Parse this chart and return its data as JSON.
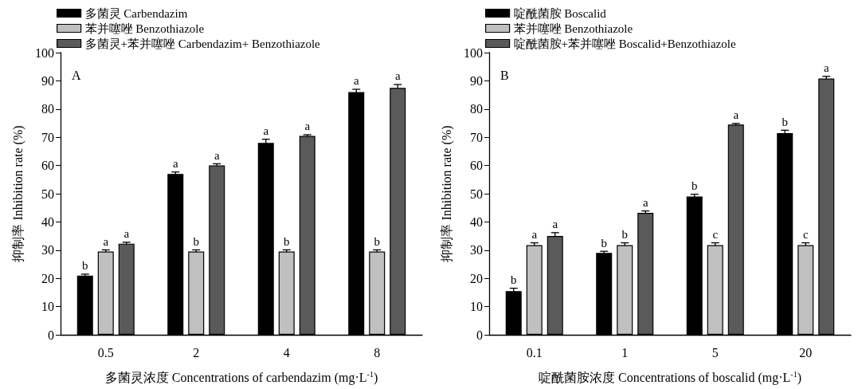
{
  "chart_data": [
    {
      "type": "bar",
      "annotations": [
        "A"
      ],
      "categories": [
        "0.5",
        "2",
        "4",
        "8"
      ],
      "xlabel": "多菌灵浓度 Concentrations of carbendazim (mg·L$^{-1}$)",
      "ylabel": "抑制率 Inhibition rate (%)",
      "ylim": [
        0,
        100
      ],
      "yticks": [
        0,
        10,
        20,
        30,
        40,
        50,
        60,
        70,
        80,
        90,
        100
      ],
      "legend": "top left",
      "grid": false,
      "series": [
        {
          "name": "多菌灵 Carbendazim",
          "color": "#000000",
          "values": [
            21,
            57,
            68,
            86
          ],
          "errors": [
            0.5,
            0.7,
            1.3,
            1
          ],
          "value_labels": [
            "b",
            "a",
            "a",
            "a"
          ]
        },
        {
          "name": "苯并噻唑 Benzothiazole",
          "color": "#c0c0c0",
          "values": [
            29.5,
            29.5,
            29.5,
            29.5
          ],
          "errors": [
            0.6,
            0.6,
            0.6,
            0.6
          ],
          "value_labels": [
            "a",
            "b",
            "b",
            "b"
          ]
        },
        {
          "name": "多菌灵+苯并噻唑 Carbendazim+ Benzothiazole",
          "color": "#5a5a5a",
          "values": [
            32.3,
            60,
            70.5,
            87.5
          ],
          "errors": [
            0.5,
            0.6,
            0.4,
            1.2
          ],
          "value_labels": [
            "a",
            "a",
            "a",
            "a"
          ]
        }
      ]
    },
    {
      "type": "bar",
      "annotations": [
        "B"
      ],
      "categories": [
        "0.1",
        "1",
        "5",
        "20"
      ],
      "xlabel": "啶酰菌胺浓度 Concentrations of boscalid (mg·L$^{-1}$)",
      "ylabel": "抑制率 Inhibition rate (%)",
      "ylim": [
        0,
        100
      ],
      "yticks": [
        0,
        10,
        20,
        30,
        40,
        50,
        60,
        70,
        80,
        90,
        100
      ],
      "legend": "top left",
      "grid": false,
      "series": [
        {
          "name": "啶酰菌胺 Boscalid",
          "color": "#000000",
          "values": [
            15.5,
            29,
            49,
            71.5
          ],
          "errors": [
            1,
            0.6,
            0.8,
            1
          ],
          "value_labels": [
            "b",
            "b",
            "b",
            "b"
          ]
        },
        {
          "name": "苯并噻唑 Benzothiazole",
          "color": "#c0c0c0",
          "values": [
            31.8,
            31.8,
            31.8,
            31.8
          ],
          "errors": [
            0.8,
            0.8,
            0.8,
            0.8
          ],
          "value_labels": [
            "a",
            "b",
            "c",
            "c"
          ]
        },
        {
          "name": "啶酰菌胺+苯并噻唑 Boscalid+Benzothiazole",
          "color": "#5a5a5a",
          "values": [
            35,
            43.2,
            74.5,
            90.8
          ],
          "errors": [
            1.2,
            0.7,
            0.4,
            0.8
          ],
          "value_labels": [
            "a",
            "a",
            "a",
            "a"
          ]
        }
      ]
    }
  ]
}
